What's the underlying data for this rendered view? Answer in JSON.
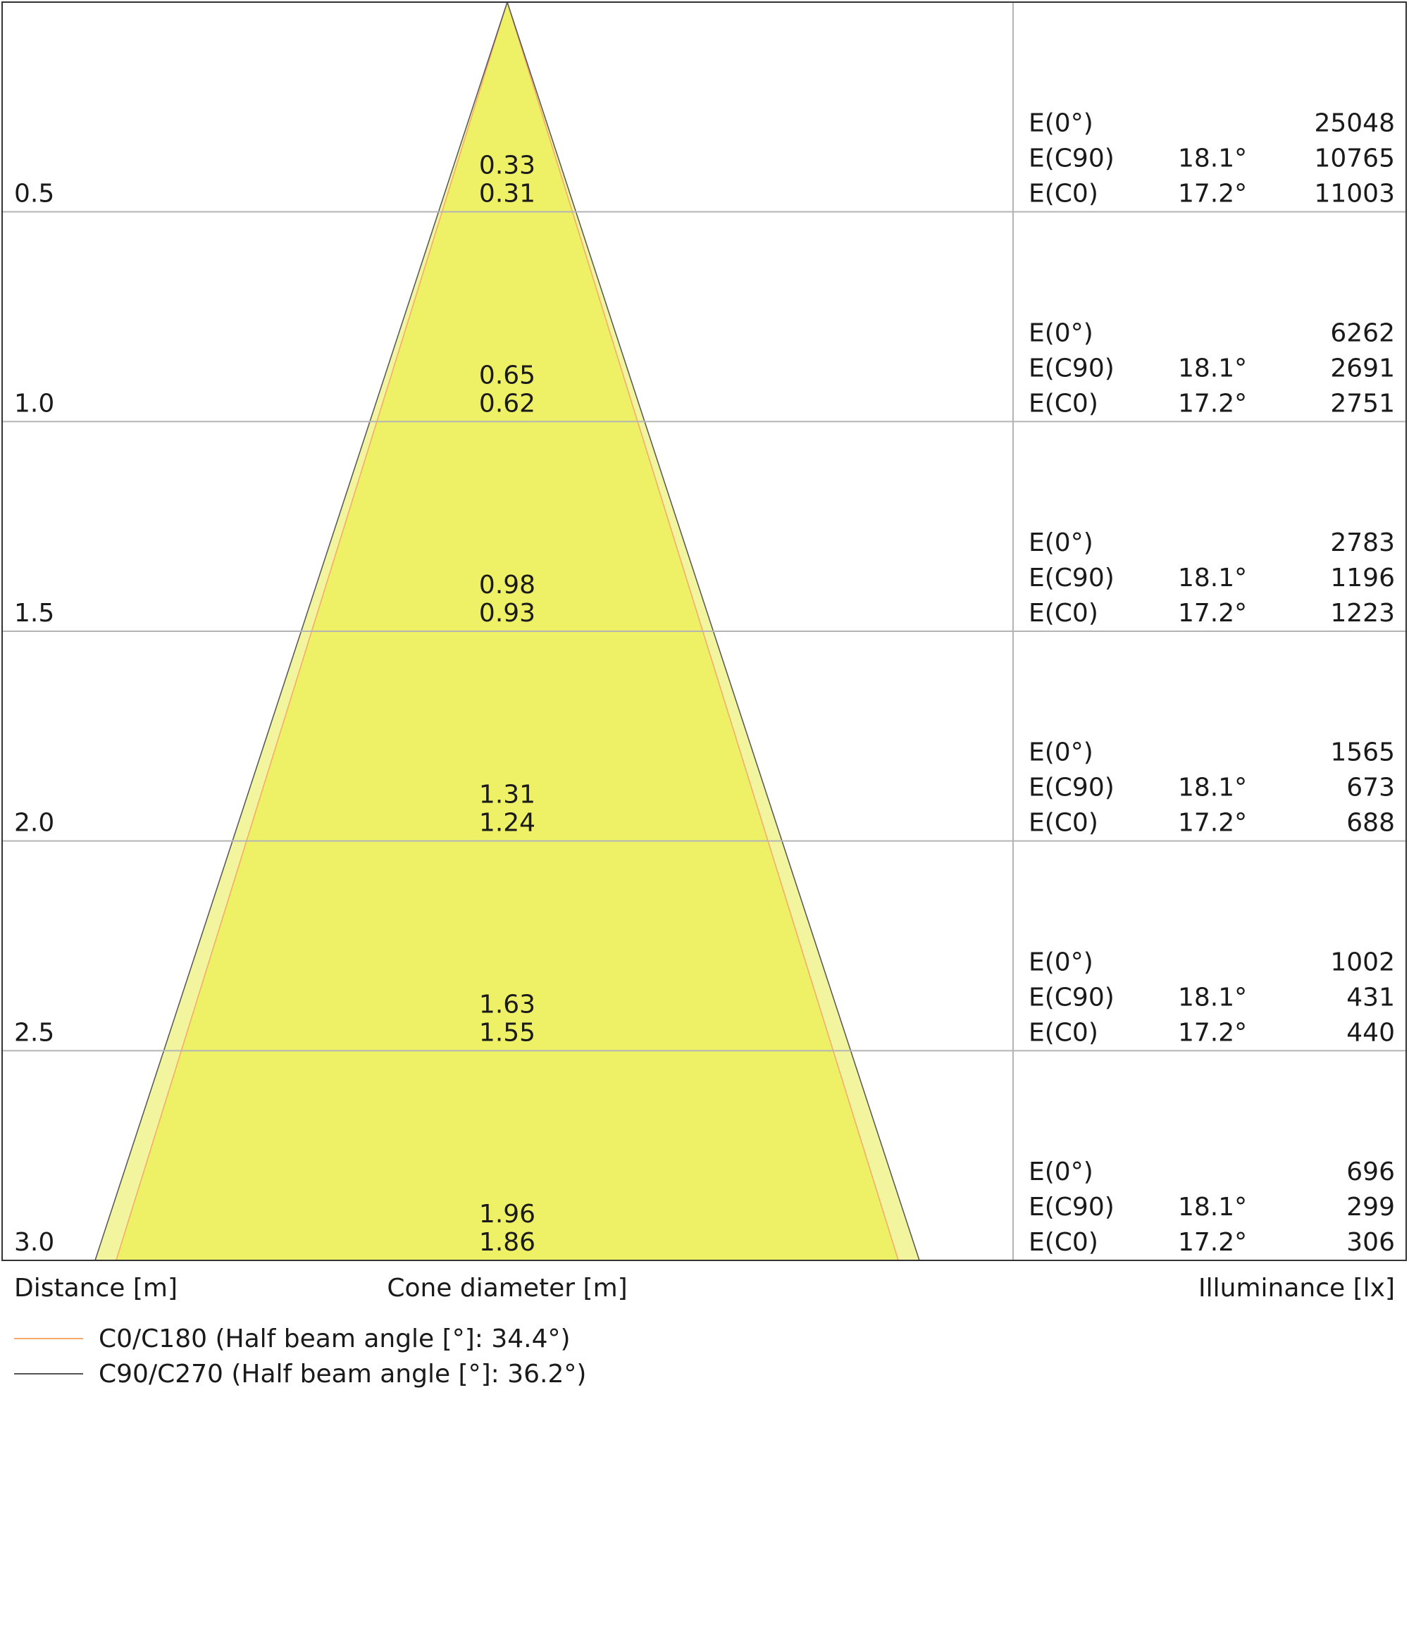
{
  "chart_data": {
    "type": "cone-diagram",
    "distances": [
      0.5,
      1.0,
      1.5,
      2.0,
      2.5,
      3.0
    ],
    "distance_labels": [
      "0.5",
      "1.0",
      "1.5",
      "2.0",
      "2.5",
      "3.0"
    ],
    "cone_diameters": {
      "C90": [
        "0.33",
        "0.65",
        "0.98",
        "1.31",
        "1.63",
        "1.96"
      ],
      "C0": [
        "0.31",
        "0.62",
        "0.93",
        "1.24",
        "1.55",
        "1.86"
      ]
    },
    "illuminance_rows": [
      {
        "label": "E(0°)",
        "angle": "",
        "key": "E0"
      },
      {
        "label": "E(C90)",
        "angle": "18.1°",
        "key": "EC90"
      },
      {
        "label": "E(C0)",
        "angle": "17.2°",
        "key": "EC0"
      }
    ],
    "illuminance": {
      "E0": [
        "25048",
        "6262",
        "2783",
        "1565",
        "1002",
        "696"
      ],
      "EC90": [
        "10765",
        "2691",
        "1196",
        "673",
        "431",
        "299"
      ],
      "EC0": [
        "11003",
        "2751",
        "1223",
        "688",
        "440",
        "306"
      ]
    },
    "axis_labels": {
      "distance": "Distance [m]",
      "cone": "Cone diameter [m]",
      "illuminance": "Illuminance [lx]"
    },
    "legend": [
      {
        "label": "C0/C180 (Half beam angle [°]: 34.4°)",
        "color": "#f5a96b",
        "key": "C0"
      },
      {
        "label": "C90/C270 (Half beam angle [°]: 36.2°)",
        "color": "#555555",
        "key": "C90"
      }
    ],
    "colors": {
      "outer_cone": "#f2f59e",
      "inner_cone": "#eef066",
      "grid": "#b4b4b4",
      "frame": "#333333"
    }
  }
}
